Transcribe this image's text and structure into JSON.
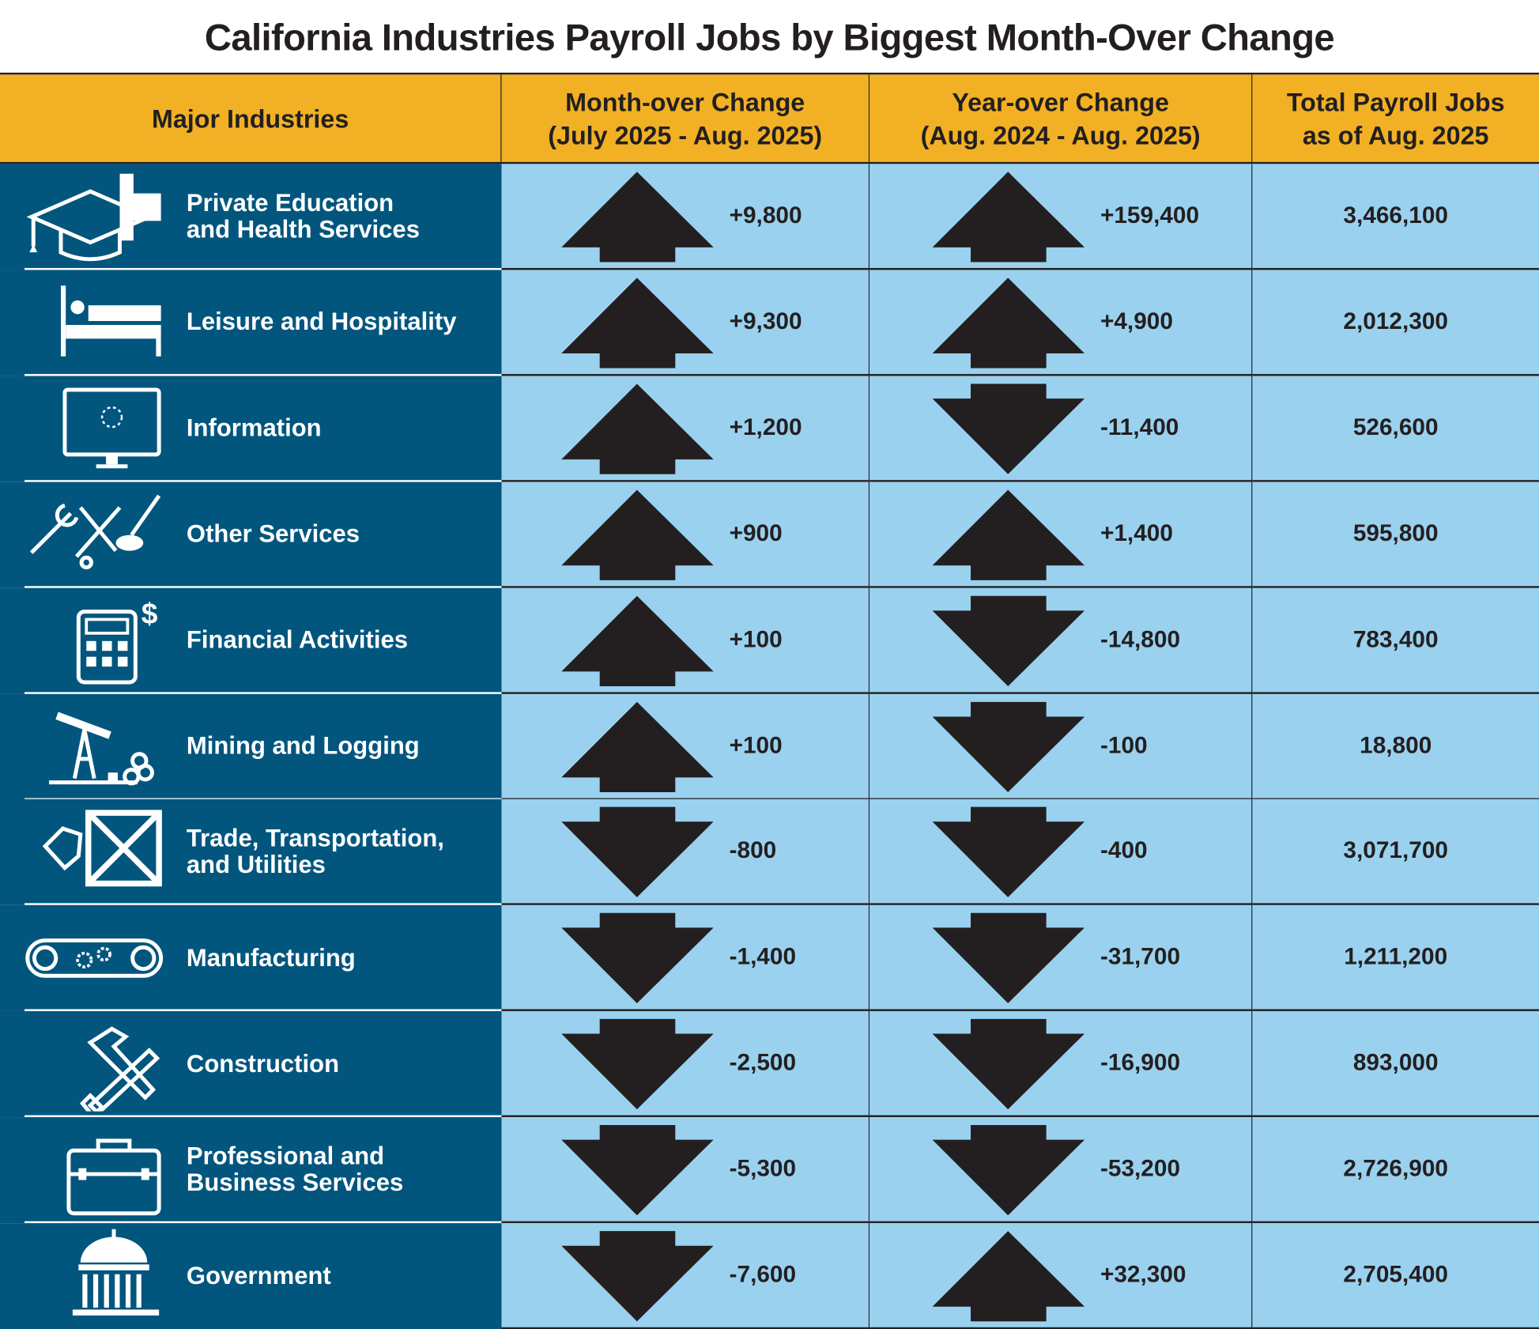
{
  "title": "California Industries Payroll Jobs by Biggest Month-Over Change",
  "headers": {
    "industry": "Major Industries",
    "month": "Month-over Change\n(July 2025 - Aug. 2025)",
    "year": "Year-over Change\n(Aug. 2024 - Aug. 2025)",
    "total": "Total Payroll Jobs\nas of Aug. 2025"
  },
  "colors": {
    "header": "#f2b124",
    "industry_bg": "#02567e",
    "cell_bg": "#9ad1ef",
    "arrow": "#231f20"
  },
  "rows": [
    {
      "name": "Private Education\nand Health Services",
      "icon": "graduation-cap-medical-cross-icon",
      "month": "+9,800",
      "month_dir": "up",
      "year": "+159,400",
      "year_dir": "up",
      "total": "3,466,100"
    },
    {
      "name": "Leisure and Hospitality",
      "icon": "bed-icon",
      "month": "+9,300",
      "month_dir": "up",
      "year": "+4,900",
      "year_dir": "up",
      "total": "2,012,300"
    },
    {
      "name": "Information",
      "icon": "computer-monitor-icon",
      "month": "+1,200",
      "month_dir": "up",
      "year": "-11,400",
      "year_dir": "down",
      "total": "526,600"
    },
    {
      "name": "Other Services",
      "icon": "wrench-scissors-brush-icon",
      "month": "+900",
      "month_dir": "up",
      "year": "+1,400",
      "year_dir": "up",
      "total": "595,800"
    },
    {
      "name": "Financial Activities",
      "icon": "calculator-dollar-icon",
      "month": "+100",
      "month_dir": "up",
      "year": "-14,800",
      "year_dir": "down",
      "total": "783,400"
    },
    {
      "name": "Mining and Logging",
      "icon": "oil-pump-logs-icon",
      "month": "+100",
      "month_dir": "up",
      "year": "-100",
      "year_dir": "down",
      "total": "18,800"
    },
    {
      "name": "Trade, Transportation,\nand Utilities",
      "icon": "crate-tag-icon",
      "month": "-800",
      "month_dir": "down",
      "year": "-400",
      "year_dir": "down",
      "total": "3,071,700"
    },
    {
      "name": "Manufacturing",
      "icon": "conveyor-gears-icon",
      "month": "-1,400",
      "month_dir": "down",
      "year": "-31,700",
      "year_dir": "down",
      "total": "1,211,200"
    },
    {
      "name": "Construction",
      "icon": "hammer-saw-icon",
      "month": "-2,500",
      "month_dir": "down",
      "year": "-16,900",
      "year_dir": "down",
      "total": "893,000"
    },
    {
      "name": "Professional and\nBusiness Services",
      "icon": "briefcase-icon",
      "month": "-5,300",
      "month_dir": "down",
      "year": "-53,200",
      "year_dir": "down",
      "total": "2,726,900"
    },
    {
      "name": "Government",
      "icon": "capitol-building-icon",
      "month": "-7,600",
      "month_dir": "down",
      "year": "+32,300",
      "year_dir": "up",
      "total": "2,705,400"
    }
  ]
}
